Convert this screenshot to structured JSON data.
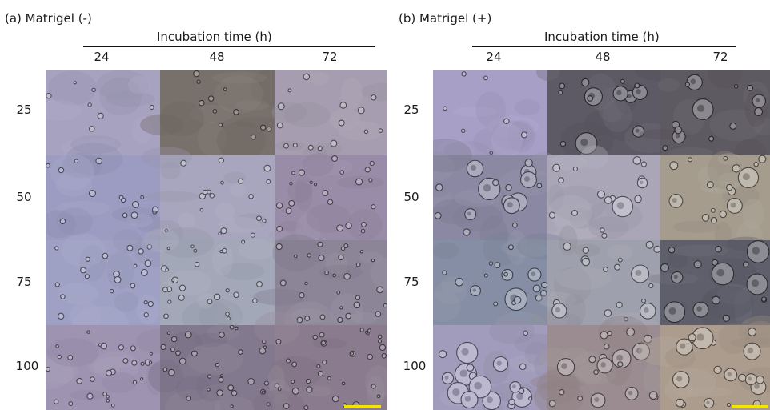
{
  "panels": [
    {
      "title": "(a) Matrigel (-)",
      "axis_title": "Incubation time (h)",
      "columns": [
        "24",
        "48",
        "72"
      ],
      "rows": [
        "25",
        "50",
        "75",
        "100"
      ],
      "tiles": [
        [
          "#a6a2c0",
          "#78706a",
          "#a69eb0"
        ],
        [
          "#9c9cc2",
          "#a8a6be",
          "#988ca8"
        ],
        [
          "#9fa1c4",
          "#a3a8b8",
          "#8c8598"
        ],
        [
          "#9e94b2",
          "#83798e",
          "#8a7c8e"
        ]
      ],
      "scale_bar_color": "#f2e600"
    },
    {
      "title": "(b) Matrigel (+)",
      "axis_title": "Incubation time (h)",
      "columns": [
        "24",
        "48",
        "72"
      ],
      "rows": [
        "25",
        "50",
        "75",
        "100"
      ],
      "tiles": [
        [
          "#a89fc6",
          "#5d5a66",
          "#5e5a62"
        ],
        [
          "#8a88a2",
          "#aaa6b8",
          "#a59c8e"
        ],
        [
          "#858ea4",
          "#9fa0ad",
          "#5f5f6b"
        ],
        [
          "#a19cbc",
          "#9a8c90",
          "#ab9c8e"
        ]
      ],
      "scale_bar_color": "#f2e600"
    }
  ]
}
